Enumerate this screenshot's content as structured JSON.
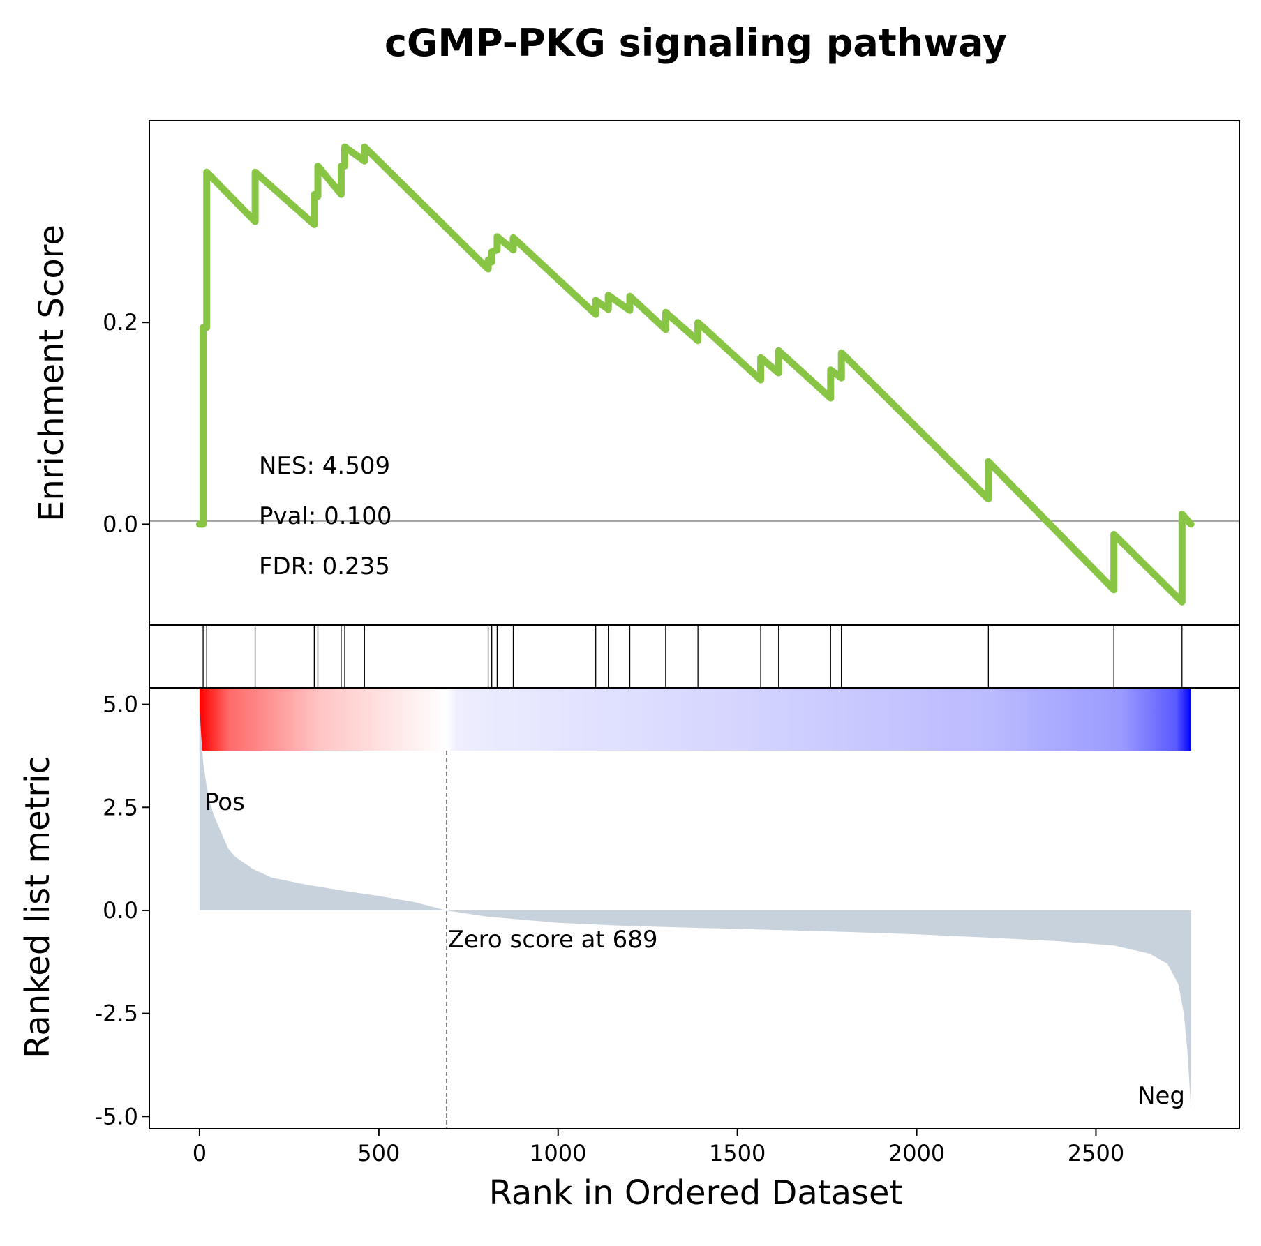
{
  "chart_data": {
    "type": "line",
    "title": "cGMP-PKG signaling pathway",
    "x_range": [
      -140,
      2900
    ],
    "x_ticks": [
      0,
      500,
      1000,
      1500,
      2000,
      2500
    ],
    "x_tick_labels": [
      "0",
      "500",
      "1000",
      "1500",
      "2000",
      "2500"
    ],
    "xlabel": "Rank in Ordered Dataset",
    "enrichment": {
      "ylabel": "Enrichment Score",
      "y_range": [
        -0.1,
        0.4
      ],
      "y_ticks": [
        0.0,
        0.2
      ],
      "y_tick_labels": [
        "0.0",
        "0.2"
      ],
      "color": "#88c544",
      "x": [
        0,
        10,
        10,
        20,
        20,
        155,
        155,
        320,
        320,
        330,
        330,
        395,
        395,
        405,
        405,
        460,
        460,
        805,
        805,
        815,
        815,
        830,
        830,
        875,
        875,
        1105,
        1105,
        1140,
        1140,
        1200,
        1200,
        1300,
        1300,
        1390,
        1390,
        1565,
        1565,
        1615,
        1615,
        1760,
        1760,
        1790,
        1790,
        2200,
        2200,
        2550,
        2550,
        2740,
        2740,
        2765
      ],
      "y": [
        0.0,
        0.0,
        0.195,
        0.195,
        0.349,
        0.3,
        0.349,
        0.297,
        0.327,
        0.325,
        0.355,
        0.327,
        0.355,
        0.355,
        0.374,
        0.36,
        0.374,
        0.253,
        0.262,
        0.26,
        0.27,
        0.272,
        0.285,
        0.272,
        0.284,
        0.208,
        0.222,
        0.213,
        0.227,
        0.212,
        0.226,
        0.193,
        0.21,
        0.182,
        0.2,
        0.143,
        0.165,
        0.15,
        0.172,
        0.125,
        0.153,
        0.145,
        0.17,
        0.025,
        0.062,
        -0.065,
        -0.01,
        -0.077,
        0.01,
        0.0
      ],
      "annotations": [
        "NES: 4.509",
        "Pval: 0.100",
        "FDR: 0.235"
      ]
    },
    "hits": [
      10,
      20,
      155,
      320,
      330,
      395,
      405,
      460,
      805,
      815,
      830,
      875,
      1105,
      1140,
      1200,
      1300,
      1390,
      1565,
      1615,
      1760,
      1790,
      2200,
      2550,
      2740
    ],
    "ranked_metric": {
      "ylabel": "Ranked list metric",
      "y_range": [
        -5.3,
        5.4
      ],
      "y_ticks": [
        5.0,
        2.5,
        0.0,
        -2.5,
        -5.0
      ],
      "y_tick_labels": [
        "5.0",
        "2.5",
        "0.0",
        "-2.5",
        "-5.0"
      ],
      "fill_color": "#c8d2dc",
      "x": [
        0,
        5,
        10,
        20,
        30,
        40,
        50,
        60,
        80,
        100,
        150,
        200,
        300,
        400,
        500,
        600,
        689,
        800,
        1000,
        1200,
        1500,
        1800,
        2000,
        2200,
        2400,
        2550,
        2650,
        2700,
        2730,
        2745,
        2755,
        2765
      ],
      "y": [
        4.9,
        4.2,
        3.6,
        3.0,
        2.6,
        2.3,
        2.1,
        1.9,
        1.5,
        1.3,
        1.0,
        0.8,
        0.62,
        0.48,
        0.35,
        0.2,
        0.0,
        -0.15,
        -0.3,
        -0.38,
        -0.45,
        -0.52,
        -0.58,
        -0.66,
        -0.75,
        -0.85,
        -1.05,
        -1.3,
        -1.8,
        -2.5,
        -3.4,
        -4.8
      ],
      "zero_cross": 689,
      "zero_label": "Zero score at 689",
      "pos_label": "Pos",
      "neg_label": "Neg",
      "pos_color": "#ff0000",
      "neg_color": "#0000ff"
    }
  }
}
